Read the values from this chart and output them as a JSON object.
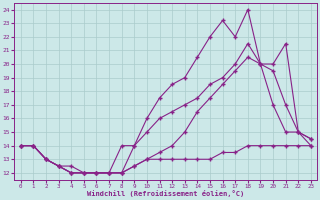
{
  "xlabel": "Windchill (Refroidissement éolien,°C)",
  "bg_color": "#cce8e8",
  "line_color": "#882288",
  "grid_color": "#aacccc",
  "xlim": [
    -0.5,
    23.5
  ],
  "ylim": [
    11.5,
    24.5
  ],
  "xticks": [
    0,
    1,
    2,
    3,
    4,
    5,
    6,
    7,
    8,
    9,
    10,
    11,
    12,
    13,
    14,
    15,
    16,
    17,
    18,
    19,
    20,
    21,
    22,
    23
  ],
  "yticks": [
    12,
    13,
    14,
    15,
    16,
    17,
    18,
    19,
    20,
    21,
    22,
    23,
    24
  ],
  "line1_x": [
    0,
    1,
    2,
    3,
    4,
    5,
    6,
    7,
    8,
    9,
    10,
    11,
    12,
    13,
    14,
    15,
    16,
    17,
    18,
    19,
    20,
    21,
    22,
    23
  ],
  "line1_y": [
    14.0,
    14.0,
    13.0,
    12.5,
    12.0,
    12.0,
    12.0,
    12.0,
    12.0,
    14.0,
    16.0,
    17.5,
    18.5,
    19.0,
    20.5,
    22.0,
    23.2,
    22.0,
    24.0,
    20.0,
    17.0,
    15.0,
    15.0,
    14.0
  ],
  "line2_x": [
    0,
    1,
    2,
    3,
    4,
    5,
    6,
    7,
    8,
    9,
    10,
    11,
    12,
    13,
    14,
    15,
    16,
    17,
    18,
    19,
    20,
    21,
    22,
    23
  ],
  "line2_y": [
    14.0,
    14.0,
    13.0,
    12.5,
    12.0,
    12.0,
    12.0,
    12.0,
    14.0,
    14.0,
    15.0,
    16.0,
    16.5,
    17.0,
    17.5,
    18.5,
    19.0,
    20.0,
    21.5,
    20.0,
    20.0,
    21.5,
    15.0,
    14.5
  ],
  "line3_x": [
    0,
    1,
    2,
    3,
    4,
    5,
    6,
    7,
    8,
    9,
    10,
    11,
    12,
    13,
    14,
    15,
    16,
    17,
    18,
    19,
    20,
    21,
    22,
    23
  ],
  "line3_y": [
    14.0,
    14.0,
    13.0,
    12.5,
    12.5,
    12.0,
    12.0,
    12.0,
    12.0,
    12.5,
    13.0,
    13.5,
    14.0,
    15.0,
    16.5,
    17.5,
    18.5,
    19.5,
    20.5,
    20.0,
    19.5,
    17.0,
    15.0,
    14.5
  ],
  "line4_x": [
    0,
    1,
    2,
    3,
    4,
    5,
    6,
    7,
    8,
    9,
    10,
    11,
    12,
    13,
    14,
    15,
    16,
    17,
    18,
    19,
    20,
    21,
    22,
    23
  ],
  "line4_y": [
    14.0,
    14.0,
    13.0,
    12.5,
    12.0,
    12.0,
    12.0,
    12.0,
    12.0,
    12.5,
    13.0,
    13.0,
    13.0,
    13.0,
    13.0,
    13.0,
    13.5,
    13.5,
    14.0,
    14.0,
    14.0,
    14.0,
    14.0,
    14.0
  ]
}
